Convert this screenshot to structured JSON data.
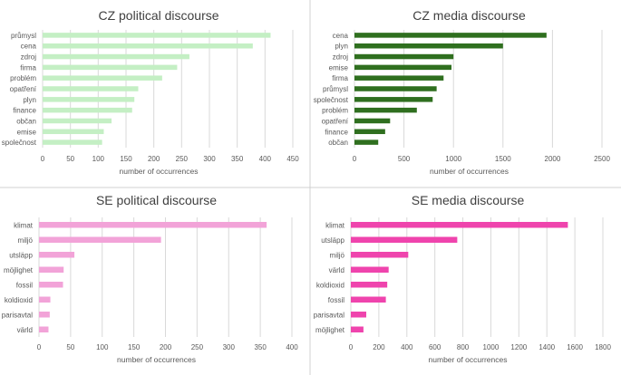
{
  "chart_data": [
    {
      "type": "bar",
      "orientation": "horizontal",
      "title": "CZ political discourse",
      "xlabel": "number of occurrences",
      "categories": [
        "průmysl",
        "cena",
        "zdroj",
        "firma",
        "problém",
        "opatření",
        "plyn",
        "finance",
        "občan",
        "emise",
        "společnost"
      ],
      "values": [
        410,
        378,
        264,
        242,
        215,
        172,
        165,
        161,
        124,
        110,
        107
      ],
      "xlim": [
        0,
        450
      ],
      "xticks": [
        0,
        50,
        100,
        150,
        200,
        250,
        300,
        350,
        400,
        450
      ],
      "color": "#c4efc4",
      "grid": "vertical"
    },
    {
      "type": "bar",
      "orientation": "horizontal",
      "title": "CZ media discourse",
      "xlabel": "number of occurrences",
      "categories": [
        "cena",
        "plyn",
        "zdroj",
        "emise",
        "firma",
        "průmysl",
        "společnost",
        "problém",
        "opatření",
        "finance",
        "občan"
      ],
      "values": [
        1940,
        1500,
        1000,
        980,
        900,
        830,
        790,
        630,
        360,
        310,
        240
      ],
      "xlim": [
        0,
        2500
      ],
      "xticks": [
        0,
        500,
        1000,
        1500,
        2000,
        2500
      ],
      "color": "#2f6f1f",
      "grid": "vertical"
    },
    {
      "type": "bar",
      "orientation": "horizontal",
      "title": "SE political discourse",
      "xlabel": "number of occurrences",
      "categories": [
        "klimat",
        "miljö",
        "utsläpp",
        "möjlighet",
        "fossil",
        "koldioxid",
        "parisavtal",
        "värld"
      ],
      "values": [
        360,
        193,
        56,
        39,
        38,
        18,
        17,
        15
      ],
      "xlim": [
        0,
        400
      ],
      "xticks": [
        0,
        50,
        100,
        150,
        200,
        250,
        300,
        350,
        400
      ],
      "color": "#f2a3d8",
      "grid": "vertical"
    },
    {
      "type": "bar",
      "orientation": "horizontal",
      "title": "SE media discourse",
      "xlabel": "number of occurrences",
      "categories": [
        "klimat",
        "utsläpp",
        "miljö",
        "värld",
        "koldioxid",
        "fossil",
        "parisavtal",
        "möjlighet"
      ],
      "values": [
        1550,
        760,
        410,
        270,
        260,
        250,
        110,
        90
      ],
      "xlim": [
        0,
        1800
      ],
      "xticks": [
        0,
        200,
        400,
        600,
        800,
        1000,
        1200,
        1400,
        1600,
        1800
      ],
      "color": "#ef44ad",
      "grid": "vertical"
    }
  ]
}
